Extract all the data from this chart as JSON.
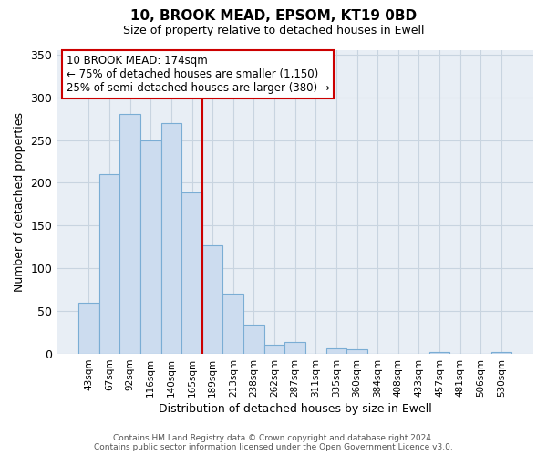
{
  "title": "10, BROOK MEAD, EPSOM, KT19 0BD",
  "subtitle": "Size of property relative to detached houses in Ewell",
  "xlabel": "Distribution of detached houses by size in Ewell",
  "ylabel": "Number of detached properties",
  "bar_labels": [
    "43sqm",
    "67sqm",
    "92sqm",
    "116sqm",
    "140sqm",
    "165sqm",
    "189sqm",
    "213sqm",
    "238sqm",
    "262sqm",
    "287sqm",
    "311sqm",
    "335sqm",
    "360sqm",
    "384sqm",
    "408sqm",
    "433sqm",
    "457sqm",
    "481sqm",
    "506sqm",
    "530sqm"
  ],
  "bar_heights": [
    60,
    210,
    280,
    250,
    270,
    189,
    127,
    70,
    34,
    11,
    14,
    0,
    6,
    5,
    0,
    0,
    0,
    2,
    0,
    0,
    2
  ],
  "bar_color": "#ccdcef",
  "bar_edge_color": "#7aadd4",
  "vline_x": 5.5,
  "vline_color": "#cc0000",
  "annotation_title": "10 BROOK MEAD: 174sqm",
  "annotation_line1": "← 75% of detached houses are smaller (1,150)",
  "annotation_line2": "25% of semi-detached houses are larger (380) →",
  "annotation_box_color": "#ffffff",
  "annotation_border_color": "#cc0000",
  "ylim": [
    0,
    355
  ],
  "yticks": [
    0,
    50,
    100,
    150,
    200,
    250,
    300,
    350
  ],
  "footer_line1": "Contains HM Land Registry data © Crown copyright and database right 2024.",
  "footer_line2": "Contains public sector information licensed under the Open Government Licence v3.0.",
  "background_color": "#ffffff",
  "plot_bg_color": "#e8eef5",
  "grid_color": "#c8d4e0"
}
